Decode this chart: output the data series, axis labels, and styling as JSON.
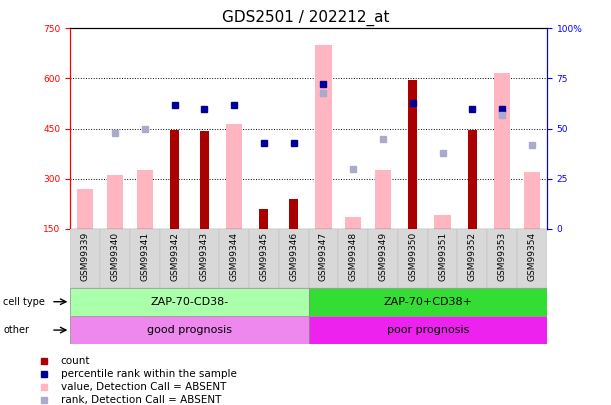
{
  "title": "GDS2501 / 202212_at",
  "samples": [
    "GSM99339",
    "GSM99340",
    "GSM99341",
    "GSM99342",
    "GSM99343",
    "GSM99344",
    "GSM99345",
    "GSM99346",
    "GSM99347",
    "GSM99348",
    "GSM99349",
    "GSM99350",
    "GSM99351",
    "GSM99352",
    "GSM99353",
    "GSM99354"
  ],
  "count_values": [
    null,
    null,
    null,
    447,
    443,
    null,
    210,
    240,
    null,
    null,
    null,
    595,
    null,
    447,
    null,
    null
  ],
  "percentile_rank_values": [
    null,
    null,
    null,
    62,
    60,
    62,
    43,
    43,
    72,
    null,
    null,
    63,
    null,
    60,
    60,
    null
  ],
  "value_absent": [
    270,
    310,
    325,
    null,
    null,
    463,
    null,
    null,
    700,
    185,
    325,
    null,
    190,
    null,
    615,
    320
  ],
  "rank_absent": [
    null,
    48,
    50,
    null,
    null,
    null,
    null,
    null,
    68,
    30,
    45,
    null,
    38,
    null,
    57,
    42
  ],
  "ylim_left": [
    150,
    750
  ],
  "ylim_right": [
    0,
    100
  ],
  "yticks_left": [
    150,
    300,
    450,
    600,
    750
  ],
  "yticks_right": [
    0,
    25,
    50,
    75,
    100
  ],
  "cell_type_groups": [
    {
      "label": "ZAP-70-CD38-",
      "start": 0,
      "end": 8,
      "color": "#AAFFAA"
    },
    {
      "label": "ZAP-70+CD38+",
      "start": 8,
      "end": 16,
      "color": "#33DD33"
    }
  ],
  "other_groups": [
    {
      "label": "good prognosis",
      "start": 0,
      "end": 8,
      "color": "#EE88EE"
    },
    {
      "label": "poor prognosis",
      "start": 8,
      "end": 16,
      "color": "#EE22EE"
    }
  ],
  "bar_color_count": "#AA0000",
  "bar_color_value_absent": "#FFB6C1",
  "dot_color_percentile": "#000099",
  "dot_color_rank_absent": "#AAAACC",
  "grid_color": "black",
  "bg_color": "white",
  "title_fontsize": 11,
  "tick_fontsize": 6.5,
  "label_fontsize": 8
}
